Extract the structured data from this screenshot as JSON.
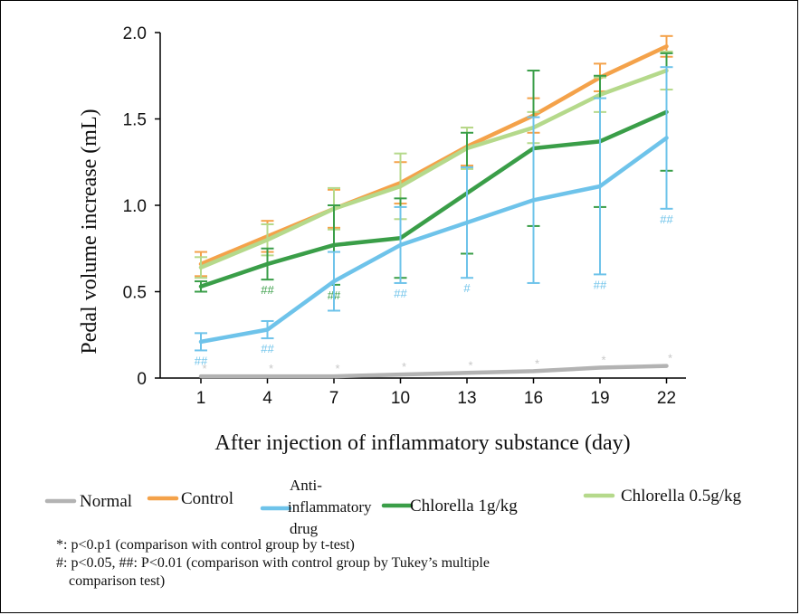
{
  "chart_data": {
    "type": "line",
    "xlabel": "After injection of inflammatory substance (day)",
    "ylabel": "Pedal volume increase (mL)",
    "x": [
      1,
      4,
      7,
      10,
      13,
      16,
      19,
      22
    ],
    "y_ticks": [
      "0",
      "0.5",
      "1.0",
      "1.5",
      "2.0"
    ],
    "ylim": [
      0,
      2.0
    ],
    "series": [
      {
        "name": "Normal",
        "color": "#b3b3b3",
        "values": [
          0.01,
          0.01,
          0.01,
          0.02,
          0.03,
          0.04,
          0.06,
          0.07
        ],
        "err": [
          0,
          0,
          0,
          0,
          0,
          0,
          0,
          0
        ],
        "marks": [
          "*",
          "*",
          "*",
          "*",
          "*",
          "*",
          "*",
          "*"
        ]
      },
      {
        "name": "Control",
        "color": "#f4a24a",
        "values": [
          0.66,
          0.82,
          0.98,
          1.13,
          1.34,
          1.52,
          1.74,
          1.92
        ],
        "err": [
          0.07,
          0.09,
          0.11,
          0.12,
          0.11,
          0.1,
          0.08,
          0.06
        ],
        "marks": [
          "",
          "",
          "",
          "",
          "",
          "",
          "",
          ""
        ]
      },
      {
        "name": "Anti-inflammatory drug",
        "label_lines": [
          "Anti-",
          "inflammatory",
          "drug"
        ],
        "color": "#6ec3ea",
        "values": [
          0.21,
          0.28,
          0.56,
          0.77,
          0.9,
          1.03,
          1.11,
          1.39
        ],
        "err": [
          0.05,
          0.05,
          0.17,
          0.22,
          0.32,
          0.48,
          0.51,
          0.41
        ],
        "marks": [
          "##",
          "##",
          "",
          "##",
          "#",
          "",
          "##",
          "##"
        ]
      },
      {
        "name": "Chlorella 1g/kg",
        "color": "#3a9e48",
        "values": [
          0.53,
          0.66,
          0.77,
          0.81,
          1.07,
          1.33,
          1.37,
          1.54
        ],
        "err": [
          0.03,
          0.09,
          0.23,
          0.23,
          0.35,
          0.45,
          0.38,
          0.34
        ],
        "marks": [
          "",
          "##",
          "##",
          "",
          "",
          "",
          "",
          ""
        ]
      },
      {
        "name": "Chlorella 0.5g/kg",
        "color": "#b5d98b",
        "values": [
          0.64,
          0.8,
          0.98,
          1.11,
          1.33,
          1.45,
          1.64,
          1.78
        ],
        "err": [
          0.06,
          0.09,
          0.12,
          0.19,
          0.12,
          0.09,
          0.1,
          0.11
        ],
        "marks": [
          "",
          "",
          "",
          "",
          "",
          "",
          "",
          ""
        ]
      }
    ]
  },
  "notes": [
    "*: p<0.p1 (comparison with control group by t-test)",
    "#: p<0.05, ##: P<0.01 (comparison with control group by Tukey’s multiple",
    "comparison test)"
  ]
}
